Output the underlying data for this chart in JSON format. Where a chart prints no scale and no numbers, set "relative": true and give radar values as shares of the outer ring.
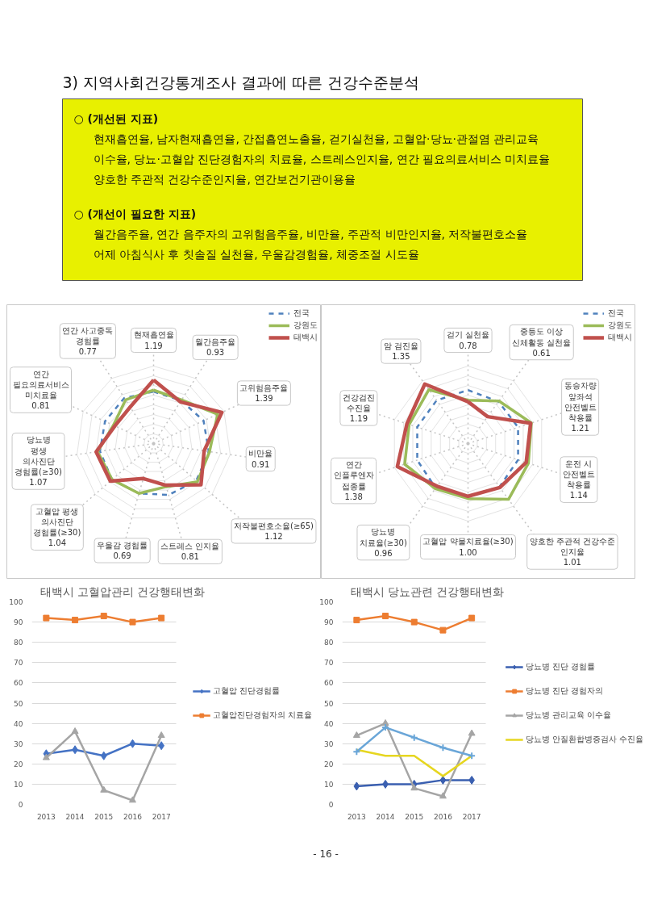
{
  "chart_data": [
    {
      "type": "other",
      "title": "3) 지역사회건강통계조사 결과에 따른 건강수준분석",
      "annotations": [
        "○ (개선된 지표)",
        "현재흡연율, 남자현재흡연율, 간접흡연노출율, 걷기실천율, 고혈압·당뇨·관절염 관리교육\n이수율, 당뇨·고혈압 진단경험자의 치료율, 스트레스인지율, 연간 필요의료서비스 미치료율\n양호한 주관적 건강수준인지율, 연간보건기관이용율",
        "○ (개선이 필요한 지표)",
        "월간음주율, 연간 음주자의 고위험음주율, 비만율, 주관적 비만인지율, 저작불편호소율\n어제 아침식사 후 칫솔질 실천율, 우울감경험율, 체중조절 시도율"
      ]
    },
    {
      "type": "radar",
      "relative": true,
      "grid": true,
      "legend": "top right",
      "categories": [
        "현재흡연율\n1.19",
        "월간음주율\n0.93",
        "고위험음주율\n1.39",
        "비만율\n0.91",
        "저작불편호소율(≥65)\n1.12",
        "스트레스 인지율\n0.81",
        "우울감 경험률\n0.69",
        "고혈압 평생\n의사진단\n경험률(≥30)\n1.04",
        "당뇨병\n평생\n의사진단\n경험률(≥30)\n1.07",
        "연간\n필요의료서비스\n미치료율\n0.81",
        "연간 사고중독\n경험률\n0.77"
      ],
      "series": [
        {
          "name": "전국",
          "color": "#4f81bd",
          "line_style": "dashed",
          "values": [
            0.67,
            0.66,
            0.71,
            0.72,
            0.73,
            0.69,
            0.67,
            0.71,
            0.7,
            0.69,
            0.7
          ]
        },
        {
          "name": "강원도",
          "color": "#9bbb59",
          "values": [
            0.69,
            0.67,
            0.91,
            0.73,
            0.75,
            0.58,
            0.67,
            0.71,
            0.73,
            0.57,
            0.67
          ]
        },
        {
          "name": "태백시",
          "color": "#c0504d",
          "values": [
            0.82,
            0.64,
            0.97,
            0.66,
            0.81,
            0.56,
            0.47,
            0.74,
            0.75,
            0.55,
            0.56
          ]
        }
      ]
    },
    {
      "type": "radar",
      "relative": true,
      "grid": true,
      "legend": "top right",
      "categories": [
        "걷기 실천율\n0.78",
        "중등도 이상\n신체활동 실천율\n0.61",
        "동승차량\n앞좌석\n안전벨트\n착용률\n1.21",
        "운전 시\n안전벨트\n착용률\n1.14",
        "양호한 주관적 건강수준\n인지율\n1.01",
        "고혈압 약물치료율(≥30)\n1.00",
        "당뇨병\n치료율(≥30)\n0.96",
        "연간\n인플루엔자\n접종률\n1.38",
        "건강검진\n수진율\n1.19",
        "암 검진율\n1.35"
      ],
      "series": [
        {
          "name": "전국",
          "color": "#4f81bd",
          "line_style": "dashed",
          "values": [
            0.69,
            0.67,
            0.68,
            0.68,
            0.69,
            0.68,
            0.71,
            0.69,
            0.69,
            0.69
          ]
        },
        {
          "name": "강원도",
          "color": "#9bbb59",
          "values": [
            0.56,
            0.68,
            0.86,
            0.82,
            0.89,
            0.71,
            0.72,
            0.86,
            0.8,
            0.86
          ]
        },
        {
          "name": "태백시",
          "color": "#c0504d",
          "values": [
            0.54,
            0.43,
            0.85,
            0.79,
            0.7,
            0.68,
            0.68,
            0.96,
            0.83,
            0.95
          ]
        }
      ]
    },
    {
      "type": "line",
      "title": "태백시 고혈압관리 건강행태변화",
      "categories": [
        "2013",
        "2014",
        "2015",
        "2016",
        "2017"
      ],
      "ylim": [
        0,
        100
      ],
      "yticks": [
        0,
        10,
        20,
        30,
        40,
        50,
        60,
        70,
        80,
        90,
        100
      ],
      "grid": "y",
      "legend": "right",
      "series": [
        {
          "name": "고혈압 진단경험률",
          "color": "#4472c4",
          "marker": "diamond",
          "values": [
            25,
            27,
            24,
            30,
            29
          ]
        },
        {
          "name": "고혈압진단경험자의 치료율",
          "color": "#ed7d31",
          "marker": "square",
          "values": [
            92,
            91,
            93,
            90,
            92
          ]
        },
        {
          "color": "#a5a5a5",
          "marker": "triangle",
          "values": [
            23,
            36,
            7,
            2,
            34
          ]
        }
      ]
    },
    {
      "type": "line",
      "title": "태백시 당뇨관련 건강행태변화",
      "categories": [
        "2013",
        "2014",
        "2015",
        "2016",
        "2017"
      ],
      "ylim": [
        0,
        100
      ],
      "yticks": [
        0,
        10,
        20,
        30,
        40,
        50,
        60,
        70,
        80,
        90,
        100
      ],
      "grid": "y",
      "legend": "right",
      "series": [
        {
          "name": "당뇨병 진단 경험률",
          "color": "#3a5fb0",
          "marker": "diamond",
          "values": [
            9,
            10,
            10,
            12,
            12
          ]
        },
        {
          "name": "당뇨병 진단 경험자의",
          "color": "#ed7d31",
          "marker": "square",
          "values": [
            91,
            93,
            90,
            86,
            92
          ]
        },
        {
          "name": "당뇨병 관리교육 이수율",
          "color": "#a5a5a5",
          "marker": "triangle",
          "values": [
            34,
            40,
            8,
            4,
            35
          ]
        },
        {
          "name": "당뇨병 안질환합병증검사 수진율",
          "color": "#e6d620",
          "marker": "none",
          "values": [
            27,
            24,
            24,
            14,
            24
          ]
        },
        {
          "color": "#6aa6d8",
          "marker": "cross",
          "values": [
            26,
            38,
            33,
            28,
            24
          ]
        }
      ],
      "annotations": [
        "- 16 -"
      ]
    }
  ]
}
